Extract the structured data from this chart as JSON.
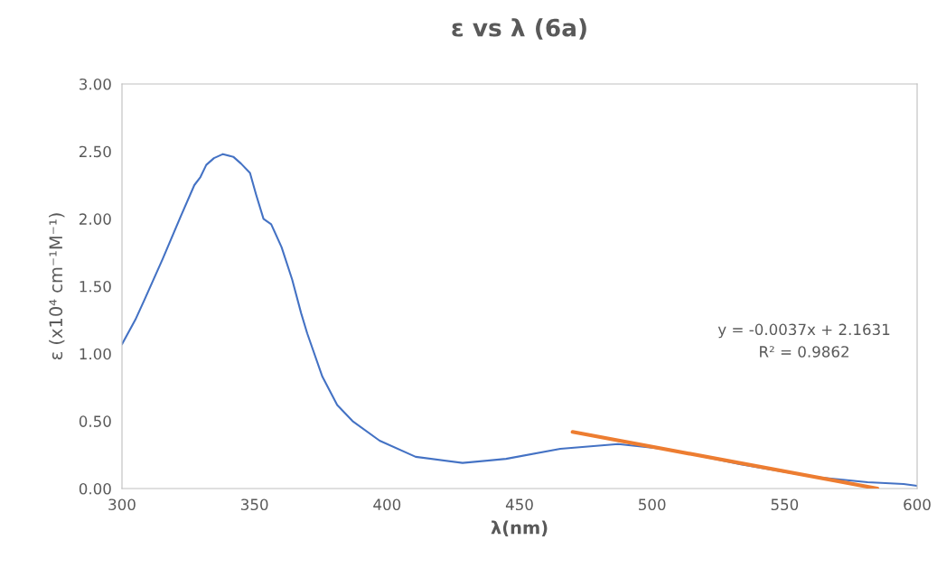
{
  "chart_data": {
    "type": "line",
    "title": "ε vs λ (6a)",
    "xlabel": "λ(nm)",
    "ylabel": "ε (x10⁴ cm⁻¹M⁻¹)",
    "x": [
      300,
      305,
      308.5,
      315.3,
      322.2,
      327.3,
      329.6,
      331.8,
      334.7,
      338.1,
      342.0,
      344.9,
      348.3,
      350.6,
      353.4,
      356.3,
      360.2,
      364.2,
      367.6,
      369.9,
      375.6,
      381.2,
      387.0,
      397.2,
      410.8,
      428.5,
      444.9,
      465.4,
      487.2,
      506.3,
      533.5,
      560.8,
      581.3,
      594.9,
      600
    ],
    "series": [
      {
        "color": "#4472c4",
        "values": [
          1.07,
          1.25,
          1.4,
          1.7,
          2.02,
          2.25,
          2.31,
          2.4,
          2.45,
          2.48,
          2.46,
          2.41,
          2.34,
          2.18,
          2.0,
          1.96,
          1.79,
          1.55,
          1.3,
          1.15,
          0.83,
          0.62,
          0.5,
          0.355,
          0.235,
          0.19,
          0.22,
          0.295,
          0.33,
          0.29,
          0.18,
          0.087,
          0.047,
          0.033,
          0.02
        ]
      },
      {
        "color": "#ed7d31",
        "x": [
          470,
          585
        ],
        "values": [
          0.42,
          0.0
        ]
      }
    ],
    "annotations": [
      "y = -0.0037x + 2.1631",
      "R² = 0.9862"
    ],
    "xlim": [
      300,
      600
    ],
    "xticks": [
      300,
      350,
      400,
      450,
      500,
      550,
      600
    ],
    "ylim": [
      0,
      3
    ],
    "yticks": [
      {
        "value": 0,
        "label": "0.00"
      },
      {
        "value": 0.5,
        "label": "0.50"
      },
      {
        "value": 1,
        "label": "1.00"
      },
      {
        "value": 1.5,
        "label": "1.50"
      },
      {
        "value": 2,
        "label": "2.00"
      },
      {
        "value": 2.5,
        "label": "2.50"
      },
      {
        "value": 3,
        "label": "3.00"
      }
    ],
    "grid": false,
    "marker": "none",
    "line_style": "solid"
  }
}
